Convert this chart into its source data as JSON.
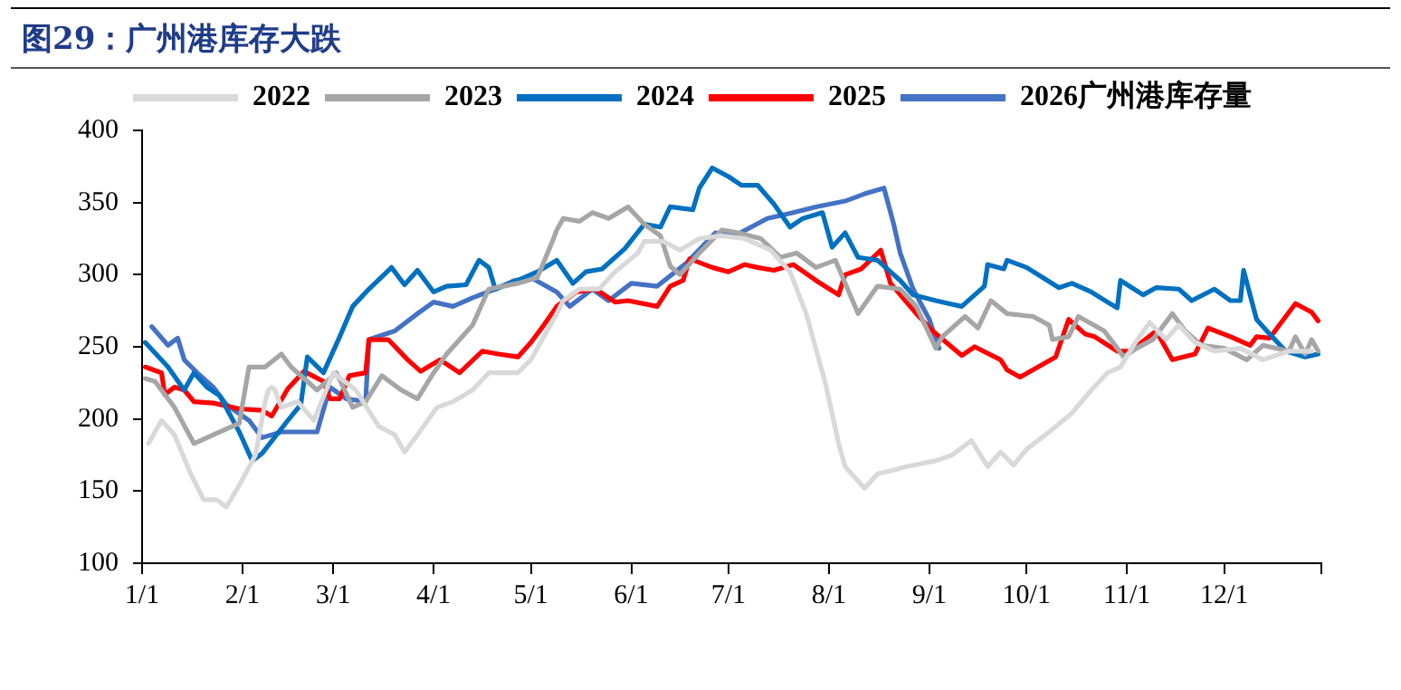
{
  "chart_data": {
    "type": "line",
    "title": "图29：广州港库存大跌",
    "legend": "top",
    "grid": false,
    "marker": "none",
    "line_style": "solid",
    "xlim": [
      "--01-01",
      "--12-31"
    ],
    "xticks": [
      {
        "value": "--01-01",
        "label": "1/1"
      },
      {
        "value": "--02-01",
        "label": "2/1"
      },
      {
        "value": "--03-01",
        "label": "3/1"
      },
      {
        "value": "--04-01",
        "label": "4/1"
      },
      {
        "value": "--05-01",
        "label": "5/1"
      },
      {
        "value": "--06-01",
        "label": "6/1"
      },
      {
        "value": "--07-01",
        "label": "7/1"
      },
      {
        "value": "--08-01",
        "label": "8/1"
      },
      {
        "value": "--09-01",
        "label": "9/1"
      },
      {
        "value": "--10-01",
        "label": "10/1"
      },
      {
        "value": "--11-01",
        "label": "11/1"
      },
      {
        "value": "--12-01",
        "label": "12/1"
      },
      {
        "value": "--12-31",
        "label": null
      }
    ],
    "ylim": [
      100,
      400
    ],
    "yticks": [
      100,
      150,
      200,
      250,
      300,
      350,
      400
    ],
    "series": [
      {
        "name": "2022",
        "color": "#d9d9d9",
        "x": [
          "--01-03",
          "--01-07",
          "--01-11",
          "--01-16",
          "--01-20",
          "--01-24",
          "--01-27",
          "--01-31",
          "--02-05",
          "--02-08",
          "--02-09",
          "--02-10",
          "--02-11",
          "--02-13",
          "--02-18",
          "--02-23",
          "--03-01",
          "--03-08",
          "--03-15",
          "--03-20",
          "--03-23",
          "--03-27",
          "--04-02",
          "--04-07",
          "--04-13",
          "--04-18",
          "--04-27",
          "--05-01",
          "--05-05",
          "--05-09",
          "--05-11",
          "--05-16",
          "--05-22",
          "--05-27",
          "--06-03",
          "--06-05",
          "--06-11",
          "--06-16",
          "--06-22",
          "--06-29",
          "--07-06",
          "--07-14",
          "--07-20",
          "--07-25",
          "--07-31",
          "--08-04",
          "--08-06",
          "--08-12",
          "--08-16",
          "--08-20",
          "--08-25",
          "--09-03",
          "--09-08",
          "--09-14",
          "--09-19",
          "--09-23",
          "--09-27",
          "--10-01",
          "--10-08",
          "--10-15",
          "--10-21",
          "--10-26",
          "--10-30",
          "--11-03",
          "--11-08",
          "--11-13",
          "--11-17",
          "--11-22",
          "--11-28",
          "--12-06",
          "--12-13",
          "--12-21",
          "--12-28"
        ],
        "values": [
          183,
          199,
          189,
          162,
          144,
          144,
          139,
          154,
          175,
          212,
          220,
          222,
          220,
          208,
          212,
          199,
          232,
          220,
          195,
          189,
          177,
          189,
          208,
          212,
          220,
          232,
          232,
          241,
          257,
          273,
          282,
          290,
          290,
          302,
          315,
          323,
          323,
          317,
          325,
          327,
          325,
          317,
          302,
          273,
          224,
          183,
          167,
          152,
          162,
          164,
          167,
          171,
          175,
          185,
          167,
          177,
          168,
          179,
          191,
          204,
          220,
          232,
          236,
          251,
          267,
          255,
          265,
          253,
          247,
          249,
          241,
          247,
          247
        ]
      },
      {
        "name": "2023",
        "color": "#a6a6a6",
        "x": [
          "--01-02",
          "--01-05",
          "--01-11",
          "--01-17",
          "--01-23",
          "--01-31",
          "--02-03",
          "--02-08",
          "--02-13",
          "--02-16",
          "--02-24",
          "--03-02",
          "--03-07",
          "--03-11",
          "--03-16",
          "--03-22",
          "--03-27",
          "--04-01",
          "--04-05",
          "--04-13",
          "--04-18",
          "--04-27",
          "--05-03",
          "--05-08",
          "--05-09",
          "--05-11",
          "--05-16",
          "--05-20",
          "--05-25",
          "--05-31",
          "--06-05",
          "--06-10",
          "--06-13",
          "--06-16",
          "--06-22",
          "--06-29",
          "--07-04",
          "--07-11",
          "--07-17",
          "--07-22",
          "--07-28",
          "--08-03",
          "--08-10",
          "--08-16",
          "--08-23",
          "--08-28",
          "--09-03",
          "--09-05",
          "--09-12",
          "--09-16",
          "--09-20",
          "--09-25",
          "--10-03",
          "--10-08",
          "--10-09",
          "--10-14",
          "--10-17",
          "--10-25",
          "--10-31",
          "--11-04",
          "--11-09",
          "--11-15",
          "--11-19",
          "--11-24",
          "--12-01",
          "--12-08",
          "--12-13",
          "--12-21",
          "--12-23",
          "--12-26",
          "--12-28",
          "--12-30"
        ],
        "values": [
          228,
          226,
          208,
          183,
          189,
          197,
          236,
          236,
          245,
          236,
          220,
          232,
          208,
          212,
          230,
          220,
          214,
          232,
          245,
          265,
          290,
          294,
          298,
          325,
          331,
          339,
          337,
          343,
          339,
          347,
          335,
          327,
          306,
          300,
          315,
          331,
          329,
          325,
          312,
          315,
          305,
          310,
          273,
          292,
          290,
          278,
          249,
          257,
          271,
          263,
          282,
          273,
          271,
          265,
          255,
          257,
          271,
          261,
          243,
          249,
          255,
          273,
          261,
          251,
          249,
          241,
          251,
          247,
          257,
          245,
          255,
          247
        ]
      },
      {
        "name": "2024",
        "color": "#0070c0",
        "x": [
          "--01-02",
          "--01-09",
          "--01-14",
          "--01-17",
          "--01-21",
          "--01-25",
          "--01-31",
          "--02-04",
          "--02-07",
          "--02-15",
          "--02-19",
          "--02-21",
          "--02-26",
          "--03-03",
          "--03-07",
          "--03-12",
          "--03-19",
          "--03-23",
          "--03-27",
          "--04-01",
          "--04-05",
          "--04-11",
          "--04-15",
          "--04-18",
          "--04-20",
          "--04-27",
          "--05-03",
          "--05-09",
          "--05-14",
          "--05-18",
          "--05-23",
          "--05-30",
          "--06-05",
          "--06-10",
          "--06-13",
          "--06-20",
          "--06-22",
          "--06-26",
          "--07-01",
          "--07-05",
          "--07-10",
          "--07-15",
          "--07-20",
          "--07-24",
          "--07-30",
          "--08-02",
          "--08-06",
          "--08-10",
          "--08-16",
          "--08-23",
          "--08-27",
          "--09-03",
          "--09-07",
          "--09-11",
          "--09-18",
          "--09-19",
          "--09-24",
          "--09-25",
          "--10-01",
          "--10-06",
          "--10-11",
          "--10-15",
          "--10-21",
          "--10-26",
          "--10-29",
          "--10-30",
          "--11-06",
          "--11-10",
          "--11-17",
          "--11-21",
          "--11-28",
          "--12-03",
          "--12-06",
          "--12-07",
          "--12-11",
          "--12-15",
          "--12-20",
          "--12-26",
          "--12-30"
        ],
        "values": [
          253,
          236,
          220,
          232,
          222,
          216,
          191,
          171,
          176,
          199,
          210,
          243,
          232,
          257,
          278,
          290,
          305,
          293,
          303,
          288,
          292,
          293,
          310,
          305,
          290,
          296,
          302,
          310,
          294,
          302,
          304,
          318,
          335,
          333,
          347,
          345,
          360,
          374,
          368,
          362,
          362,
          349,
          333,
          339,
          343,
          319,
          329,
          312,
          310,
          296,
          286,
          282,
          280,
          278,
          292,
          307,
          304,
          310,
          305,
          298,
          291,
          294,
          288,
          281,
          277,
          296,
          286,
          291,
          290,
          282,
          290,
          282,
          282,
          303,
          269,
          259,
          247,
          243,
          245
        ]
      },
      {
        "name": "2025",
        "color": "#ff0000",
        "x": [
          "--01-02",
          "--01-07",
          "--01-08",
          "--01-11",
          "--01-14",
          "--01-17",
          "--01-23",
          "--01-31",
          "--02-07",
          "--02-10",
          "--02-15",
          "--02-20",
          "--02-26",
          "--02-28",
          "--03-03",
          "--03-06",
          "--03-11",
          "--03-12",
          "--03-18",
          "--03-24",
          "--03-28",
          "--04-03",
          "--04-09",
          "--04-16",
          "--04-21",
          "--04-27",
          "--05-01",
          "--05-05",
          "--05-09",
          "--05-15",
          "--05-21",
          "--05-27",
          "--05-31",
          "--06-09",
          "--06-13",
          "--06-17",
          "--06-19",
          "--06-26",
          "--07-01",
          "--07-06",
          "--07-10",
          "--07-15",
          "--07-21",
          "--07-28",
          "--08-04",
          "--08-06",
          "--08-11",
          "--08-17",
          "--08-20",
          "--08-28",
          "--09-02",
          "--09-11",
          "--09-15",
          "--09-23",
          "--09-25",
          "--09-29",
          "--10-10",
          "--10-14",
          "--10-19",
          "--10-22",
          "--10-29",
          "--11-02",
          "--11-10",
          "--11-15",
          "--11-22",
          "--11-26",
          "--12-03",
          "--12-09",
          "--12-11",
          "--12-15",
          "--12-23",
          "--12-28",
          "--12-30"
        ],
        "values": [
          236,
          232,
          217,
          222,
          220,
          212,
          211,
          207,
          206,
          202,
          221,
          233,
          226,
          214,
          214,
          230,
          232,
          255,
          255,
          241,
          233,
          241,
          232,
          247,
          245,
          243,
          253,
          265,
          278,
          288,
          290,
          281,
          282,
          278,
          292,
          296,
          311,
          305,
          302,
          307,
          305,
          303,
          307,
          296,
          286,
          300,
          304,
          317,
          294,
          273,
          261,
          244,
          250,
          241,
          234,
          229,
          243,
          269,
          259,
          257,
          247,
          247,
          261,
          241,
          245,
          263,
          257,
          251,
          257,
          256,
          280,
          274,
          268
        ]
      },
      {
        "name": "2026广州港库存量",
        "color": "#4472c4",
        "x": [
          "--01-04",
          "--01-09",
          "--01-12",
          "--01-14",
          "--01-18",
          "--01-23",
          "--01-27",
          "--02-03",
          "--02-07",
          "--02-13",
          "--02-24",
          "--02-28",
          "--03-05",
          "--03-11",
          "--03-12",
          "--03-20",
          "--03-27",
          "--04-01",
          "--04-07",
          "--04-13",
          "--04-20",
          "--04-26",
          "--05-01",
          "--05-09",
          "--05-13",
          "--05-20",
          "--05-25",
          "--06-01",
          "--06-09",
          "--06-18",
          "--06-27",
          "--07-03",
          "--07-13",
          "--07-21",
          "--07-28",
          "--08-06",
          "--08-12",
          "--08-18",
          "--08-21",
          "--08-23",
          "--08-27",
          "--09-01",
          "--09-04"
        ],
        "values": [
          264,
          251,
          256,
          241,
          232,
          222,
          210,
          199,
          187,
          191,
          191,
          222,
          214,
          212,
          255,
          261,
          273,
          281,
          278,
          284,
          290,
          296,
          298,
          288,
          278,
          290,
          282,
          294,
          292,
          308,
          329,
          327,
          339,
          343,
          347,
          351,
          356,
          360,
          335,
          315,
          290,
          269,
          249
        ]
      }
    ]
  }
}
